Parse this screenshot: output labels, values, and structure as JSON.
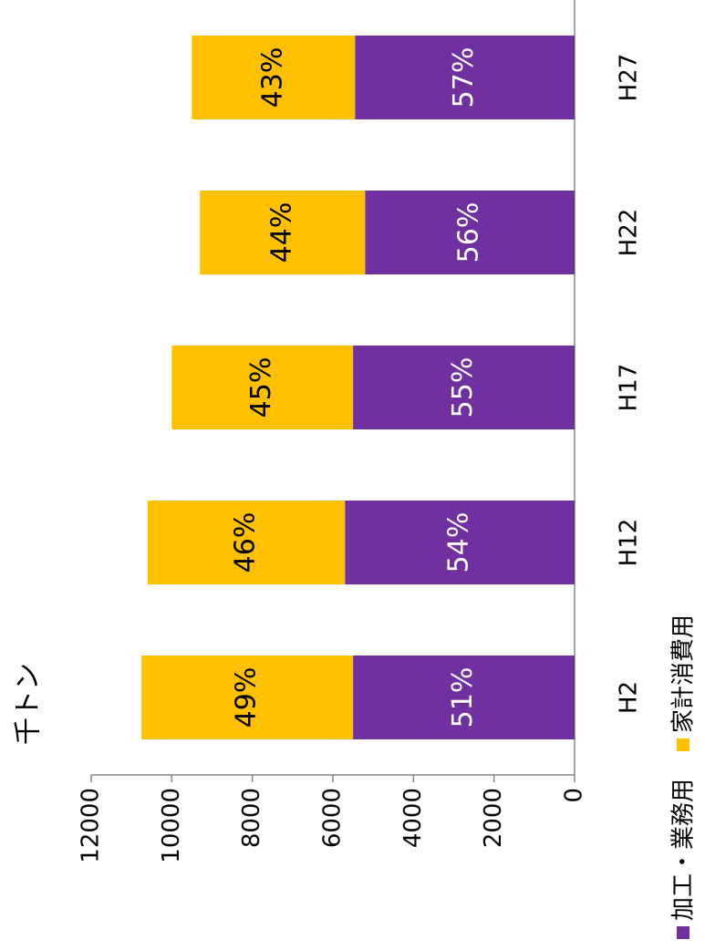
{
  "chart_data": {
    "type": "stacked_bar",
    "title": "千トン",
    "categories": [
      "H2",
      "H12",
      "H17",
      "H22",
      "H27"
    ],
    "series": [
      {
        "name": "加工・業務用",
        "color": "#7030a0",
        "values": [
          5500,
          5700,
          5500,
          5200,
          5450
        ],
        "value_labels": [
          "51%",
          "54%",
          "55%",
          "56%",
          "57%"
        ],
        "label_color": "#ffffff"
      },
      {
        "name": "家計消費用",
        "color": "#ffc000",
        "values": [
          5250,
          4900,
          4500,
          4100,
          4050
        ],
        "value_labels": [
          "49%",
          "46%",
          "45%",
          "44%",
          "43%"
        ],
        "label_color": "#000000"
      }
    ],
    "ylim": [
      0,
      12000
    ],
    "yticks": [
      0,
      2000,
      4000,
      6000,
      8000,
      10000,
      12000
    ],
    "grid": false,
    "legend": "bottom",
    "rotation": -90
  }
}
